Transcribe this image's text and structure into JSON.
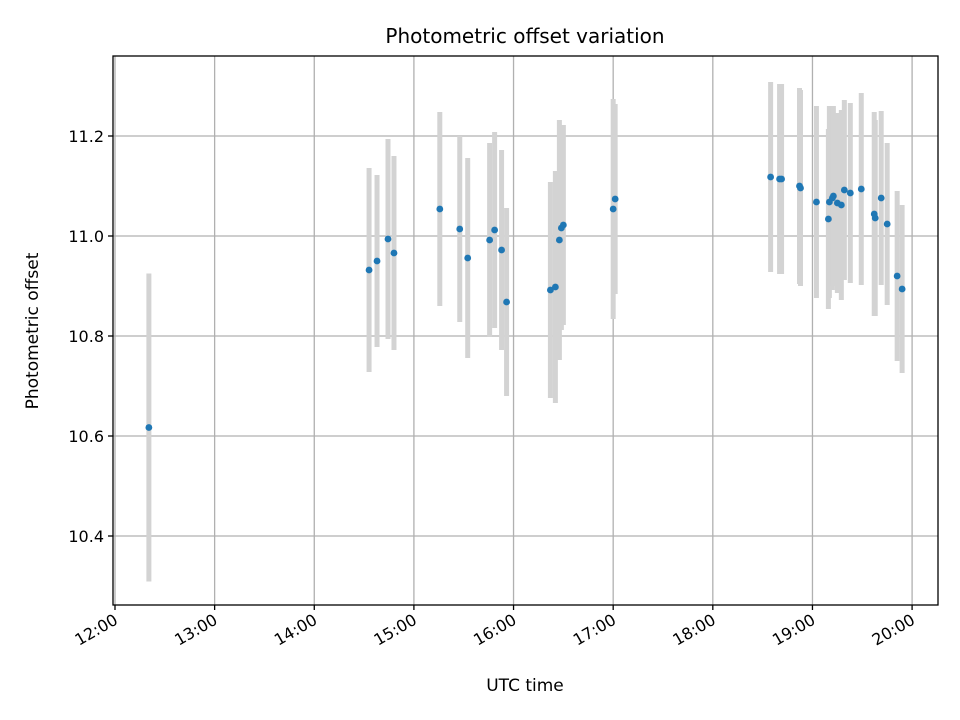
{
  "chart_data": {
    "type": "scatter",
    "title": "Photometric offset variation",
    "xlabel": "UTC time",
    "ylabel": "Photometric offset",
    "xlim": [
      11.98,
      20.26
    ],
    "ylim": [
      10.262,
      11.36
    ],
    "grid": true,
    "x_ticks": [
      {
        "value": 12,
        "label": "12:00"
      },
      {
        "value": 13,
        "label": "13:00"
      },
      {
        "value": 14,
        "label": "14:00"
      },
      {
        "value": 15,
        "label": "15:00"
      },
      {
        "value": 16,
        "label": "16:00"
      },
      {
        "value": 17,
        "label": "17:00"
      },
      {
        "value": 18,
        "label": "18:00"
      },
      {
        "value": 19,
        "label": "19:00"
      },
      {
        "value": 20,
        "label": "20:00"
      }
    ],
    "y_ticks": [
      {
        "value": 10.4,
        "label": "10.4"
      },
      {
        "value": 10.6,
        "label": "10.6"
      },
      {
        "value": 10.8,
        "label": "10.8"
      },
      {
        "value": 11.0,
        "label": "11.0"
      },
      {
        "value": 11.2,
        "label": "11.2"
      }
    ],
    "marker_color": "#1f77b4",
    "errorbar_color": "#d3d3d3",
    "points": [
      {
        "x": 12.34,
        "y": 10.617,
        "err": 0.308
      },
      {
        "x": 14.55,
        "y": 10.932,
        "err": 0.204
      },
      {
        "x": 14.63,
        "y": 10.95,
        "err": 0.172
      },
      {
        "x": 14.74,
        "y": 10.994,
        "err": 0.2
      },
      {
        "x": 14.8,
        "y": 10.966,
        "err": 0.194
      },
      {
        "x": 15.26,
        "y": 11.054,
        "err": 0.194
      },
      {
        "x": 15.46,
        "y": 11.014,
        "err": 0.186
      },
      {
        "x": 15.54,
        "y": 10.956,
        "err": 0.2
      },
      {
        "x": 15.76,
        "y": 10.992,
        "err": 0.194
      },
      {
        "x": 15.81,
        "y": 11.012,
        "err": 0.196
      },
      {
        "x": 15.88,
        "y": 10.972,
        "err": 0.2
      },
      {
        "x": 15.93,
        "y": 10.868,
        "err": 0.188
      },
      {
        "x": 16.37,
        "y": 10.892,
        "err": 0.216
      },
      {
        "x": 16.42,
        "y": 10.898,
        "err": 0.232
      },
      {
        "x": 16.46,
        "y": 10.992,
        "err": 0.24
      },
      {
        "x": 16.48,
        "y": 11.016,
        "err": 0.204
      },
      {
        "x": 16.5,
        "y": 11.022,
        "err": 0.2
      },
      {
        "x": 17.0,
        "y": 11.054,
        "err": 0.22
      },
      {
        "x": 17.02,
        "y": 11.074,
        "err": 0.19
      },
      {
        "x": 18.58,
        "y": 11.118,
        "err": 0.19
      },
      {
        "x": 18.67,
        "y": 11.114,
        "err": 0.19
      },
      {
        "x": 18.69,
        "y": 11.114,
        "err": 0.19
      },
      {
        "x": 18.87,
        "y": 11.1,
        "err": 0.196
      },
      {
        "x": 18.88,
        "y": 11.096,
        "err": 0.196
      },
      {
        "x": 19.04,
        "y": 11.068,
        "err": 0.192
      },
      {
        "x": 19.16,
        "y": 11.034,
        "err": 0.18
      },
      {
        "x": 19.17,
        "y": 11.068,
        "err": 0.192
      },
      {
        "x": 19.2,
        "y": 11.076,
        "err": 0.184
      },
      {
        "x": 19.21,
        "y": 11.08,
        "err": 0.18
      },
      {
        "x": 19.25,
        "y": 11.066,
        "err": 0.18
      },
      {
        "x": 19.29,
        "y": 11.062,
        "err": 0.19
      },
      {
        "x": 19.32,
        "y": 11.092,
        "err": 0.18
      },
      {
        "x": 19.38,
        "y": 11.086,
        "err": 0.18
      },
      {
        "x": 19.49,
        "y": 11.094,
        "err": 0.192
      },
      {
        "x": 19.62,
        "y": 11.044,
        "err": 0.204
      },
      {
        "x": 19.63,
        "y": 11.036,
        "err": 0.196
      },
      {
        "x": 19.69,
        "y": 11.076,
        "err": 0.174
      },
      {
        "x": 19.75,
        "y": 11.024,
        "err": 0.162
      },
      {
        "x": 19.85,
        "y": 10.92,
        "err": 0.17
      },
      {
        "x": 19.9,
        "y": 10.894,
        "err": 0.168
      }
    ]
  }
}
